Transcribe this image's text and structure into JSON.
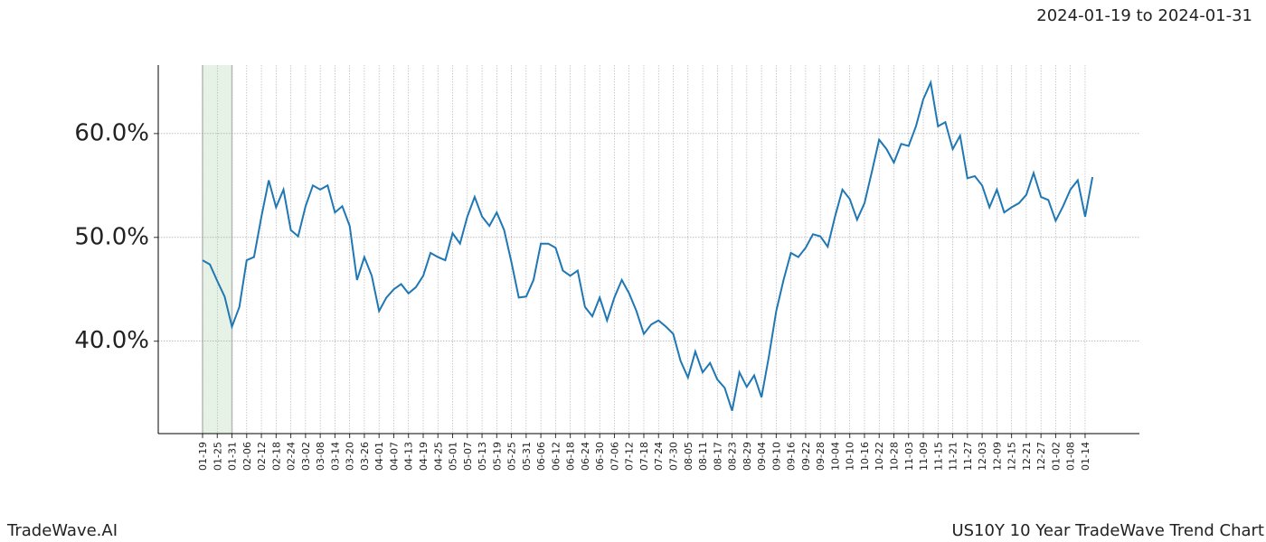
{
  "chart_data": {
    "type": "line",
    "header": "2024-01-19 to 2024-01-31",
    "footer_left": "TradeWave.AI",
    "footer_right": "US10Y 10 Year TradeWave Trend Chart",
    "highlight": {
      "start": "01-19",
      "end": "01-31"
    },
    "categories": [
      "01-19",
      null,
      "01-25",
      null,
      "01-31",
      null,
      "02-06",
      null,
      "02-12",
      null,
      "02-18",
      null,
      "02-24",
      null,
      "03-02",
      null,
      "03-08",
      null,
      "03-14",
      null,
      "03-20",
      null,
      "03-26",
      null,
      "04-01",
      null,
      "04-07",
      null,
      "04-13",
      null,
      "04-19",
      null,
      "04-25",
      null,
      "05-01",
      null,
      "05-07",
      null,
      "05-13",
      null,
      "05-19",
      null,
      "05-25",
      null,
      "05-31",
      null,
      "06-06",
      null,
      "06-12",
      null,
      "06-18",
      null,
      "06-24",
      null,
      "06-30",
      null,
      "07-06",
      null,
      "07-12",
      null,
      "07-18",
      null,
      "07-24",
      null,
      "07-30",
      null,
      "08-05",
      null,
      "08-11",
      null,
      "08-17",
      null,
      "08-23",
      null,
      "08-29",
      null,
      "09-04",
      null,
      "09-10",
      null,
      "09-16",
      null,
      "09-22",
      null,
      "09-28",
      null,
      "10-04",
      null,
      "10-10",
      null,
      "10-16",
      null,
      "10-22",
      null,
      "10-28",
      null,
      "11-03",
      null,
      "11-09",
      null,
      "11-15",
      null,
      "11-21",
      null,
      "11-27",
      null,
      "12-03",
      null,
      "12-09",
      null,
      "12-15",
      null,
      "12-21",
      null,
      "12-27",
      null,
      "01-02",
      null,
      "01-08",
      null,
      "01-14",
      null
    ],
    "series": [
      {
        "name": "US10Y",
        "color": "#1f77b4",
        "values": [
          47.8,
          47.4,
          45.8,
          44.3,
          41.4,
          43.3,
          47.8,
          48.1,
          52.0,
          55.5,
          52.9,
          54.6,
          50.7,
          50.1,
          53.0,
          55.0,
          54.6,
          55.0,
          52.4,
          53.0,
          51.1,
          45.9,
          48.1,
          46.3,
          42.9,
          44.2,
          45.0,
          45.5,
          44.6,
          45.2,
          46.3,
          48.5,
          48.1,
          47.8,
          50.4,
          49.4,
          52.0,
          53.9,
          52.0,
          51.1,
          52.4,
          50.7,
          47.6,
          44.2,
          44.3,
          45.9,
          49.4,
          49.4,
          49.0,
          46.8,
          46.3,
          46.8,
          43.3,
          42.4,
          44.2,
          42.0,
          44.2,
          45.9,
          44.6,
          42.9,
          40.7,
          41.6,
          42.0,
          41.4,
          40.7,
          38.1,
          36.5,
          39.0,
          37.0,
          37.9,
          36.3,
          35.5,
          33.3,
          37.0,
          35.6,
          36.7,
          34.6,
          38.5,
          42.9,
          45.9,
          48.5,
          48.1,
          49.0,
          50.3,
          50.1,
          49.1,
          52.0,
          54.6,
          53.7,
          51.7,
          53.3,
          56.3,
          59.4,
          58.5,
          57.2,
          59.0,
          58.8,
          60.7,
          63.3,
          64.9,
          60.7,
          61.1,
          58.5,
          59.8,
          55.7,
          55.9,
          55.0,
          52.9,
          54.6,
          52.4,
          52.9,
          53.3,
          54.1,
          56.2,
          53.9,
          53.6,
          51.6,
          53.0,
          54.6,
          55.5,
          52.0,
          55.8
        ]
      }
    ],
    "ylim": [
      31.1,
      66.6
    ],
    "yticks": [
      {
        "value": 40,
        "label": "40.0%"
      },
      {
        "value": 50,
        "label": "50.0%"
      },
      {
        "value": 60,
        "label": "60.0%"
      }
    ],
    "grid": true
  }
}
